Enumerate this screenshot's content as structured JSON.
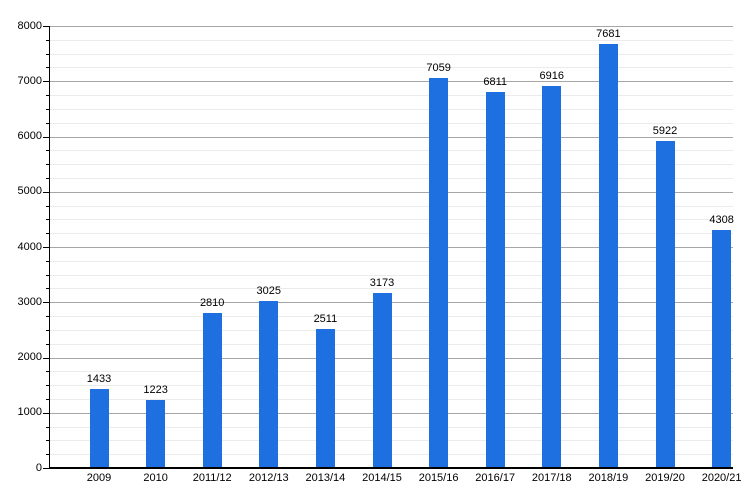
{
  "chart_data": {
    "type": "bar",
    "title": "",
    "xlabel": "",
    "ylabel": "",
    "categories": [
      "2009",
      "2010",
      "2011/12",
      "2012/13",
      "2013/14",
      "2014/15",
      "2015/16",
      "2016/17",
      "2017/18",
      "2018/19",
      "2019/20",
      "2020/21"
    ],
    "values": [
      1433,
      1223,
      2810,
      3025,
      2511,
      3173,
      7059,
      6811,
      6916,
      7681,
      5922,
      4308
    ],
    "show_data_labels": true,
    "ylim": [
      0,
      8000
    ],
    "y_major_step": 1000,
    "y_minor_step": 250,
    "y_tick_labels": [
      "0",
      "1000",
      "2000",
      "3000",
      "4000",
      "5000",
      "6000",
      "7000",
      "8000"
    ],
    "grid": "horizontal-major-and-minor",
    "legend_position": "none",
    "colors": {
      "bar": "#1e6fe0",
      "axis": "#000000",
      "major_gridline": "#a6a6a6",
      "minor_gridline": "#ebebeb",
      "label_text": "#000000",
      "background": "#ffffff"
    }
  }
}
